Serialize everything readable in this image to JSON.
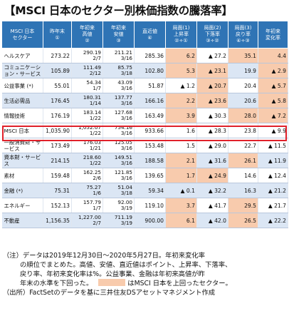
{
  "title": "【MSCI 日本のセクター別株価指数の騰落率】",
  "chart_data": {
    "type": "table",
    "headers": [
      "MSCI 日本\nセクター",
      "昨年末\n①",
      "年初来\n高値\n②",
      "年初来\n安値\n③",
      "直近値\n④",
      "局面(1)\n上昇率\n②÷①",
      "局面(2)\n下落率\n③÷②",
      "局面(3)\n戻り率\n④÷③",
      "年初来\n変化率"
    ],
    "rows": [
      {
        "name": "ヘルスケア",
        "c1": "273.22",
        "c2": "290.19\n2/7",
        "c3": "211.21\n3/16",
        "c4": "285.36",
        "c5": "6.2",
        "c6": "▲ 27.2",
        "c7": "35.1",
        "c8": "4.4",
        "hl": [
          true,
          false,
          true,
          true
        ]
      },
      {
        "name": "コミュニケーション・サービス",
        "c1": "105.89",
        "c2": "111.49\n2/12",
        "c3": "85.75\n3/18",
        "c4": "102.80",
        "c5": "5.3",
        "c6": "▲ 23.1",
        "c7": "19.9",
        "c8": "▲ 2.9",
        "hl": [
          true,
          true,
          false,
          true
        ]
      },
      {
        "name": "公益事業 (*)",
        "c1": "55.01",
        "c2": "54.34\n1/7",
        "c3": "43.09\n3/16",
        "c4": "51.87",
        "c5": "▲ 1.2",
        "c6": "▲ 20.7",
        "c7": "20.4",
        "c8": "▲ 5.7",
        "hl": [
          false,
          true,
          false,
          true
        ]
      },
      {
        "name": "生活必需品",
        "c1": "176.45",
        "c2": "180.31\n1/14",
        "c3": "137.77\n3/16",
        "c4": "166.16",
        "c5": "2.2",
        "c6": "▲ 23.6",
        "c7": "20.6",
        "c8": "▲ 5.8",
        "hl": [
          true,
          true,
          false,
          true
        ]
      },
      {
        "name": "情報技術",
        "c1": "176.19",
        "c2": "183.14\n1/22",
        "c3": "127.68\n3/16",
        "c4": "163.49",
        "c5": "3.9",
        "c6": "▲ 30.3",
        "c7": "28.0",
        "c8": "▲ 7.2",
        "hl": [
          true,
          false,
          true,
          true
        ]
      },
      {
        "name": "MSCI 日本",
        "c1": "1,035.90",
        "c2": "1,052.07\n1/22",
        "c3": "754.16\n3/16",
        "c4": "933.66",
        "c5": "1.6",
        "c6": "▲ 28.3",
        "c7": "23.8",
        "c8": "▲ 9.9",
        "hl": [
          false,
          false,
          false,
          false
        ]
      },
      {
        "name": "一般消費財・サービス",
        "c1": "173.49",
        "c2": "176.03\n1/21",
        "c3": "125.05\n3/16",
        "c4": "153.48",
        "c5": "1.5",
        "c6": "▲ 29.0",
        "c7": "22.7",
        "c8": "▲ 11.5",
        "hl": [
          false,
          false,
          false,
          false
        ]
      },
      {
        "name": "資本財・サービス",
        "c1": "214.15",
        "c2": "218.60\n1/22",
        "c3": "149.51\n3/16",
        "c4": "188.58",
        "c5": "2.1",
        "c6": "▲ 31.6",
        "c7": "26.1",
        "c8": "▲ 11.9",
        "hl": [
          true,
          false,
          true,
          false
        ]
      },
      {
        "name": "素材",
        "c1": "159.48",
        "c2": "162.25\n2/6",
        "c3": "121.85\n3/16",
        "c4": "139.65",
        "c5": "1.7",
        "c6": "▲ 24.9",
        "c7": "14.6",
        "c8": "▲ 12.4",
        "hl": [
          true,
          true,
          false,
          false
        ]
      },
      {
        "name": "金融 (*)",
        "c1": "75.31",
        "c2": "75.27\n1/6",
        "c3": "51.04\n3/18",
        "c4": "59.34",
        "c5": "▲ 0.1",
        "c6": "▲ 32.2",
        "c7": "16.3",
        "c8": "▲ 21.2",
        "hl": [
          false,
          false,
          false,
          false
        ]
      },
      {
        "name": "エネルギー",
        "c1": "152.13",
        "c2": "157.79\n1/7",
        "c3": "92.00\n3/19",
        "c4": "119.10",
        "c5": "3.7",
        "c6": "▲ 41.7",
        "c7": "29.5",
        "c8": "▲ 21.7",
        "hl": [
          true,
          false,
          true,
          false
        ]
      },
      {
        "name": "不動産",
        "c1": "1,156.35",
        "c2": "1,227.00\n2/7",
        "c3": "711.19\n3/19",
        "c4": "900.00",
        "c5": "6.1",
        "c6": "▲ 42.0",
        "c7": "26.5",
        "c8": "▲ 22.2",
        "hl": [
          true,
          false,
          true,
          false
        ]
      }
    ]
  },
  "notes": {
    "line1": "（注）データは2019年12月30日～2020年5月27日。年初来変化率",
    "line2": "の順位でまとめた。高値、安値、直近値はポイント、上昇率、下落率、",
    "line3": "戻り率、年初来変化率は%。公益事業、金融は年初来高値が昨",
    "line4a": "年末の水準を下回った。",
    "line4b": "はMSCI 日本を上回ったセクター。",
    "line5": "（出所）FactSetのデータを基に三井住友DSアセットマネジメント作成"
  }
}
